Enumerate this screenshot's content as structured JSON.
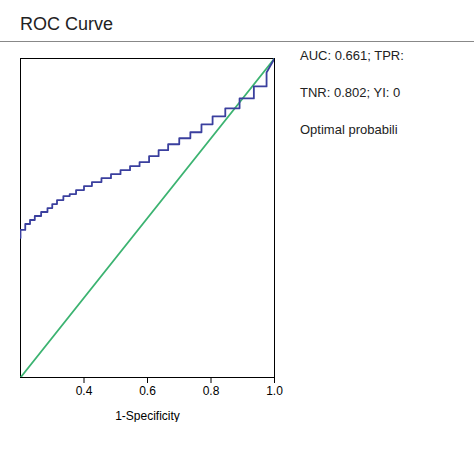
{
  "chart_data": {
    "type": "line",
    "title": "ROC Curve",
    "xlabel": "1-Specificity",
    "xlim": [
      0.2,
      1.0
    ],
    "ylim": [
      0.2,
      1.0
    ],
    "xticks": [
      0.4,
      0.6,
      0.8,
      {
        "value": 1.0,
        "label": "1.0"
      }
    ],
    "tick_labels": "x",
    "grid": false,
    "annotations": [
      "AUC: 0.661; TPR:",
      "TNR: 0.802; YI: 0",
      "Optimal probabili"
    ],
    "series": [
      {
        "color": "#3cb371",
        "x": [
          0.2,
          1.0
        ],
        "values": [
          0.2,
          1.0
        ]
      },
      {
        "color": "#3a3f9e",
        "x": [
          0.2,
          0.2,
          0.215,
          0.215,
          0.23,
          0.23,
          0.245,
          0.245,
          0.265,
          0.265,
          0.285,
          0.285,
          0.3,
          0.3,
          0.315,
          0.315,
          0.335,
          0.335,
          0.355,
          0.355,
          0.375,
          0.375,
          0.4,
          0.4,
          0.425,
          0.425,
          0.455,
          0.455,
          0.485,
          0.485,
          0.515,
          0.515,
          0.545,
          0.545,
          0.575,
          0.575,
          0.605,
          0.605,
          0.635,
          0.635,
          0.665,
          0.665,
          0.7,
          0.7,
          0.735,
          0.735,
          0.77,
          0.77,
          0.805,
          0.805,
          0.845,
          0.845,
          0.89,
          0.89,
          0.935,
          0.935,
          0.975,
          0.975,
          1.0
        ],
        "values": [
          0.55,
          0.57,
          0.57,
          0.585,
          0.585,
          0.595,
          0.595,
          0.605,
          0.605,
          0.615,
          0.615,
          0.625,
          0.625,
          0.635,
          0.635,
          0.645,
          0.645,
          0.655,
          0.655,
          0.66,
          0.66,
          0.67,
          0.67,
          0.68,
          0.68,
          0.69,
          0.69,
          0.7,
          0.7,
          0.71,
          0.71,
          0.72,
          0.72,
          0.73,
          0.73,
          0.74,
          0.74,
          0.755,
          0.755,
          0.77,
          0.77,
          0.785,
          0.785,
          0.8,
          0.8,
          0.815,
          0.815,
          0.835,
          0.835,
          0.855,
          0.855,
          0.875,
          0.875,
          0.9,
          0.9,
          0.93,
          0.93,
          0.965,
          1.0
        ]
      }
    ]
  }
}
